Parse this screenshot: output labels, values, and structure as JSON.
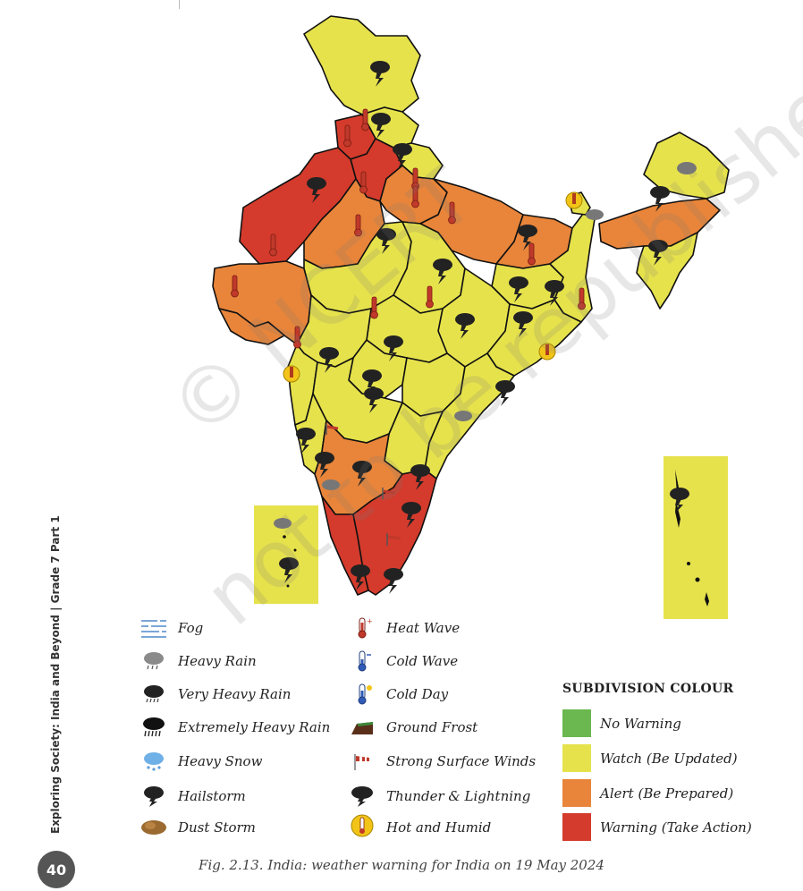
{
  "side_label": "Exploring Society: India and Beyond | Grade 7 Part 1",
  "page_number": "40",
  "watermark": {
    "line1": "© NCERT",
    "line2": "not to be republished"
  },
  "colors": {
    "no_warning": "#6ab84f",
    "watch": "#e6e24c",
    "alert": "#e8853a",
    "warning": "#d43b2c",
    "border": "#111111"
  },
  "legend": {
    "weather": [
      {
        "label": "Fog",
        "icon": "fog-icon"
      },
      {
        "label": "Heavy Rain",
        "icon": "heavy-rain-icon"
      },
      {
        "label": "Very Heavy Rain",
        "icon": "very-heavy-rain-icon"
      },
      {
        "label": "Extremely Heavy Rain",
        "icon": "extremely-heavy-rain-icon"
      },
      {
        "label": "Heavy Snow",
        "icon": "heavy-snow-icon"
      },
      {
        "label": "Hailstorm",
        "icon": "hailstorm-icon"
      },
      {
        "label": "Dust Storm",
        "icon": "dust-storm-icon"
      },
      {
        "label": "Heat Wave",
        "icon": "heat-wave-icon"
      },
      {
        "label": "Cold Wave",
        "icon": "cold-wave-icon"
      },
      {
        "label": "Cold Day",
        "icon": "cold-day-icon"
      },
      {
        "label": "Ground Frost",
        "icon": "ground-frost-icon"
      },
      {
        "label": "Strong Surface Winds",
        "icon": "strong-surface-winds-icon"
      },
      {
        "label": "Thunder & Lightning",
        "icon": "thunder-lightning-icon"
      },
      {
        "label": "Hot and Humid",
        "icon": "hot-humid-icon"
      }
    ],
    "subdivision_title": "SUBDIVISION COLOUR",
    "subdivision": [
      {
        "label": "No Warning",
        "color": "#6ab84f"
      },
      {
        "label": "Watch (Be Updated)",
        "color": "#e6e24c"
      },
      {
        "label": "Alert (Be Prepared)",
        "color": "#e8853a"
      },
      {
        "label": "Warning (Take Action)",
        "color": "#d43b2c"
      }
    ]
  },
  "caption": "Fig. 2.13. India: weather warning for India on 19 May 2024"
}
